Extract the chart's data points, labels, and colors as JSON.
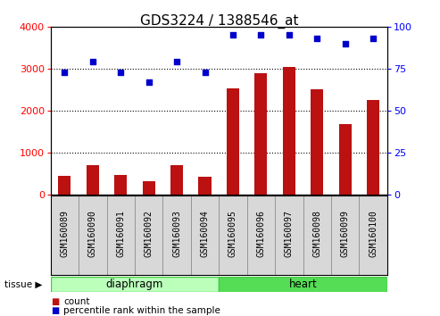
{
  "title": "GDS3224 / 1388546_at",
  "samples": [
    "GSM160089",
    "GSM160090",
    "GSM160091",
    "GSM160092",
    "GSM160093",
    "GSM160094",
    "GSM160095",
    "GSM160096",
    "GSM160097",
    "GSM160098",
    "GSM160099",
    "GSM160100"
  ],
  "counts": [
    450,
    700,
    470,
    320,
    700,
    430,
    2530,
    2900,
    3050,
    2520,
    1680,
    2250
  ],
  "percentiles": [
    73,
    79,
    73,
    67,
    79,
    73,
    95,
    95,
    95,
    93,
    90,
    93
  ],
  "tissue_groups": [
    {
      "label": "diaphragm",
      "start": 0,
      "end": 5,
      "color": "#bbffbb",
      "border_color": "#44cc44"
    },
    {
      "label": "heart",
      "start": 6,
      "end": 11,
      "color": "#55dd55",
      "border_color": "#44cc44"
    }
  ],
  "bar_color": "#bb1111",
  "dot_color": "#0000cc",
  "ylim_left": [
    0,
    4000
  ],
  "ylim_right": [
    0,
    100
  ],
  "yticks_left": [
    0,
    1000,
    2000,
    3000,
    4000
  ],
  "yticks_right": [
    0,
    25,
    50,
    75,
    100
  ],
  "title_fontsize": 11,
  "tick_label_fontsize": 7,
  "legend_fontsize": 7.5,
  "tissue_label_fontsize": 8.5
}
